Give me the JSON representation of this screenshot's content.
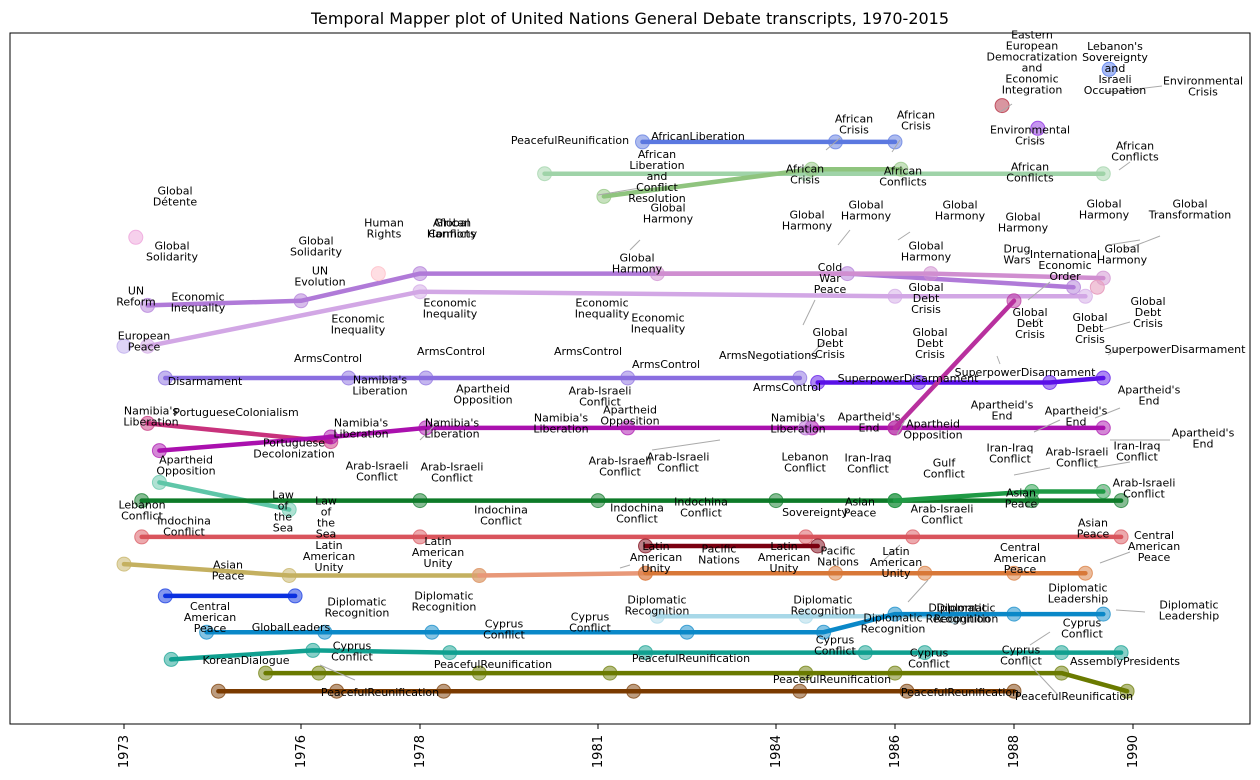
{
  "chart_data": {
    "type": "line",
    "title": "Temporal Mapper plot of United Nations General Debate transcripts, 1970-2015",
    "xlabel": "",
    "ylabel": "",
    "x_ticks": [
      "1973",
      "1976",
      "1978",
      "1981",
      "1984",
      "1986",
      "1988",
      "1990"
    ],
    "grid": false,
    "legend": "none",
    "series": [
      {
        "color": "#5b78e0",
        "points": [
          [
            "1981.75",
            16.5
          ],
          [
            "1985.0",
            16.5
          ],
          [
            "1986.0",
            16.5
          ]
        ]
      },
      {
        "color": "#9fd3a8",
        "points": [
          [
            "1980.1",
            15.8
          ],
          [
            "1984.5",
            15.8
          ],
          [
            "1989.5",
            15.8
          ]
        ]
      },
      {
        "color": "#8fc47e",
        "points": [
          [
            "1981.1",
            15.3
          ],
          [
            "1984.6",
            15.9
          ],
          [
            "1986.1",
            15.9
          ]
        ]
      },
      {
        "color": "#d2a7e5",
        "points": [
          [
            "1973.4",
            12.0
          ],
          [
            "1978.0",
            13.2
          ],
          [
            "1986.0",
            13.1
          ],
          [
            "1989.2",
            13.1
          ]
        ]
      },
      {
        "color": "#b07ad8",
        "points": [
          [
            "1973.4",
            12.9
          ],
          [
            "1976.0",
            13.0
          ],
          [
            "1978.0",
            13.6
          ],
          [
            "1985.2",
            13.6
          ],
          [
            "1989.0",
            13.3
          ]
        ]
      },
      {
        "color": "#d08ed0",
        "points": [
          [
            "1982.0",
            13.6
          ],
          [
            "1986.6",
            13.6
          ],
          [
            "1989.5",
            13.5
          ]
        ]
      },
      {
        "color": "#8a6ee0",
        "points": [
          [
            "1973.7",
            11.3
          ],
          [
            "1976.8",
            11.3
          ],
          [
            "1978.1",
            11.3
          ],
          [
            "1981.5",
            11.3
          ],
          [
            "1984.4",
            11.3
          ]
        ]
      },
      {
        "color": "#5a10e8",
        "points": [
          [
            "1984.7",
            11.2
          ],
          [
            "1986.4",
            11.2
          ],
          [
            "1988.6",
            11.2
          ],
          [
            "1989.5",
            11.3
          ]
        ]
      },
      {
        "color": "#c8327c",
        "points": [
          [
            "1973.4",
            10.3
          ],
          [
            "1976.5",
            9.9
          ]
        ]
      },
      {
        "color": "#aa10ae",
        "points": [
          [
            "1973.6",
            9.7
          ],
          [
            "1976.5",
            10.0
          ],
          [
            "1978.1",
            10.2
          ],
          [
            "1981.5",
            10.2
          ],
          [
            "1984.6",
            10.2
          ],
          [
            "1986.0",
            10.2
          ],
          [
            "1989.5",
            10.2
          ]
        ]
      },
      {
        "color": "#b8309e",
        "points": [
          [
            "1986.0",
            10.2
          ],
          [
            "1988.0",
            13.0
          ]
        ]
      },
      {
        "color": "#5fc6a8",
        "points": [
          [
            "1973.6",
            9.0
          ],
          [
            "1975.8",
            8.4
          ]
        ]
      },
      {
        "color": "#0d7a28",
        "points": [
          [
            "1973.3",
            8.6
          ],
          [
            "1978.0",
            8.6
          ],
          [
            "1981.0",
            8.6
          ],
          [
            "1984.0",
            8.6
          ],
          [
            "1986.0",
            8.6
          ],
          [
            "1988.3",
            8.6
          ],
          [
            "1989.8",
            8.6
          ]
        ]
      },
      {
        "color": "#1f9a45",
        "points": [
          [
            "1986.0",
            8.6
          ],
          [
            "1988.3",
            8.8
          ],
          [
            "1989.5",
            8.8
          ]
        ]
      },
      {
        "color": "#d9545c",
        "points": [
          [
            "1973.3",
            7.8
          ],
          [
            "1978.0",
            7.8
          ],
          [
            "1984.5",
            7.8
          ],
          [
            "1986.3",
            7.8
          ],
          [
            "1989.8",
            7.8
          ]
        ]
      },
      {
        "color": "#7a0010",
        "points": [
          [
            "1981.8",
            7.6
          ],
          [
            "1984.7",
            7.6
          ]
        ]
      },
      {
        "color": "#c4b060",
        "points": [
          [
            "1973.0",
            7.2
          ],
          [
            "1975.8",
            6.95
          ],
          [
            "1979.0",
            6.95
          ]
        ]
      },
      {
        "color": "#e89878",
        "points": [
          [
            "1979.0",
            6.95
          ],
          [
            "1981.8",
            7.0
          ]
        ]
      },
      {
        "color": "#d87838",
        "points": [
          [
            "1981.8",
            7.0
          ],
          [
            "1985.0",
            7.0
          ],
          [
            "1986.5",
            7.0
          ],
          [
            "1988.0",
            7.0
          ],
          [
            "1989.2",
            7.0
          ]
        ]
      },
      {
        "color": "#0a30e0",
        "points": [
          [
            "1973.7",
            6.5
          ],
          [
            "1975.9",
            6.5
          ]
        ]
      },
      {
        "color": "#a8d8e8",
        "points": [
          [
            "1982.0",
            6.05
          ],
          [
            "1984.5",
            6.05
          ],
          [
            "1987.0",
            6.05
          ]
        ]
      },
      {
        "color": "#0a88c8",
        "points": [
          [
            "1974.4",
            5.7
          ],
          [
            "1976.4",
            5.7
          ],
          [
            "1978.2",
            5.7
          ],
          [
            "1982.5",
            5.7
          ],
          [
            "1984.8",
            5.7
          ],
          [
            "1986.0",
            6.1
          ],
          [
            "1988.0",
            6.1
          ],
          [
            "1989.5",
            6.1
          ]
        ]
      },
      {
        "color": "#10a090",
        "points": [
          [
            "1973.8",
            5.1
          ],
          [
            "1976.2",
            5.3
          ],
          [
            "1978.5",
            5.25
          ],
          [
            "1981.8",
            5.25
          ],
          [
            "1985.5",
            5.25
          ],
          [
            "1986.5",
            5.25
          ],
          [
            "1988.8",
            5.25
          ],
          [
            "1989.8",
            5.25
          ]
        ]
      },
      {
        "color": "#6a7a00",
        "points": [
          [
            "1975.4",
            4.8
          ],
          [
            "1976.3",
            4.8
          ],
          [
            "1979.0",
            4.8
          ],
          [
            "1981.2",
            4.8
          ],
          [
            "1984.5",
            4.8
          ],
          [
            "1986.0",
            4.8
          ],
          [
            "1988.8",
            4.8
          ],
          [
            "1989.9",
            4.4
          ]
        ]
      },
      {
        "color": "#7a3a00",
        "points": [
          [
            "1974.6",
            4.4
          ],
          [
            "1976.6",
            4.4
          ],
          [
            "1978.4",
            4.4
          ],
          [
            "1981.6",
            4.4
          ],
          [
            "1984.4",
            4.4
          ],
          [
            "1986.2",
            4.4
          ],
          [
            "1988.0",
            4.4
          ]
        ]
      }
    ],
    "points": [
      {
        "x": "1973.2",
        "y": 14.4,
        "color": "#f0b0e0"
      },
      {
        "x": "1973.0",
        "y": 12.0,
        "color": "#c8b8f0"
      },
      {
        "x": "1977.3",
        "y": 13.6,
        "color": "#ffc8d0"
      },
      {
        "x": "1987.8",
        "y": 17.3,
        "color": "#c05060"
      },
      {
        "x": "1988.4",
        "y": 16.8,
        "color": "#a050e8"
      },
      {
        "x": "1989.6",
        "y": 18.1,
        "color": "#7090f0"
      },
      {
        "x": "1989.4",
        "y": 13.3,
        "color": "#e8a0c0"
      },
      {
        "x": "1984.5",
        "y": 10.2,
        "color": "#c080d8"
      }
    ],
    "annotations": [
      {
        "text": "Global Détente"
      },
      {
        "text": "Global Solidarity"
      },
      {
        "text": "UN Reform"
      },
      {
        "text": "Human Rights"
      },
      {
        "text": "Global Harmony"
      },
      {
        "text": "Global Solidarity"
      },
      {
        "text": "UN Evolution"
      },
      {
        "text": "Economic Inequality"
      },
      {
        "text": "Economic Inequality"
      },
      {
        "text": "Economic Inequality"
      },
      {
        "text": "Economic Inequality"
      },
      {
        "text": "Economic Inequality"
      },
      {
        "text": "European Peace"
      },
      {
        "text": "Disarmament"
      },
      {
        "text": "ArmsControl"
      },
      {
        "text": "ArmsControl"
      },
      {
        "text": "ArmsControl"
      },
      {
        "text": "ArmsControl"
      },
      {
        "text": "ArmsControl"
      },
      {
        "text": "ArmsNegotiations"
      },
      {
        "text": "Namibia's Liberation"
      },
      {
        "text": "PortugueseColonialism"
      },
      {
        "text": "Portuguese Decolonization"
      },
      {
        "text": "Namibia's Liberation"
      },
      {
        "text": "Namibia's Liberation"
      },
      {
        "text": "Namibia's Liberation"
      },
      {
        "text": "Apartheid Opposition"
      },
      {
        "text": "Namibia's Liberation"
      },
      {
        "text": "Apartheid Opposition"
      },
      {
        "text": "Namibia's Liberation"
      },
      {
        "text": "Apartheid Opposition"
      },
      {
        "text": "Arab-Israeli Conflict"
      },
      {
        "text": "Arab-Israeli Conflict"
      },
      {
        "text": "Arab-Israeli Conflict"
      },
      {
        "text": "Arab-Israeli Conflict"
      },
      {
        "text": "Lebanon Conflict"
      },
      {
        "text": "Lebanon Conflict"
      },
      {
        "text": "Indochina Conflict"
      },
      {
        "text": "Law of the Sea"
      },
      {
        "text": "Law of the Sea"
      },
      {
        "text": "Indochina Conflict"
      },
      {
        "text": "Indochina Conflict"
      },
      {
        "text": "Indochina Conflict"
      },
      {
        "text": "Sovereignty"
      },
      {
        "text": "Asian Peace"
      },
      {
        "text": "Arab-Israeli Conflict"
      },
      {
        "text": "Asian Peace"
      },
      {
        "text": "Asian Peace"
      },
      {
        "text": "Asian Peace"
      },
      {
        "text": "Latin American Unity"
      },
      {
        "text": "Latin American Unity"
      },
      {
        "text": "Latin American Unity"
      },
      {
        "text": "Pacific Nations"
      },
      {
        "text": "Latin American Unity"
      },
      {
        "text": "Pacific Nations"
      },
      {
        "text": "Latin American Unity"
      },
      {
        "text": "Central American Peace"
      },
      {
        "text": "Central American Peace"
      },
      {
        "text": "Central American Peace"
      },
      {
        "text": "Diplomatic Recognition"
      },
      {
        "text": "Diplomatic Recognition"
      },
      {
        "text": "Diplomatic Recognition"
      },
      {
        "text": "Diplomatic Recognition"
      },
      {
        "text": "Diplomatic Recognition"
      },
      {
        "text": "Diplomatic Recognition"
      },
      {
        "text": "Diplomatic Recognition"
      },
      {
        "text": "Diplomatic Leadership"
      },
      {
        "text": "Diplomatic Leadership"
      },
      {
        "text": "GlobalLeaders"
      },
      {
        "text": "Cyprus Conflict"
      },
      {
        "text": "Cyprus Conflict"
      },
      {
        "text": "Cyprus Conflict"
      },
      {
        "text": "Cyprus Conflict"
      },
      {
        "text": "Cyprus Conflict"
      },
      {
        "text": "Cyprus Conflict"
      },
      {
        "text": "Cyprus Conflict"
      },
      {
        "text": "AssemblyPresidents"
      },
      {
        "text": "KoreanDialogue"
      },
      {
        "text": "PeacefulReunification"
      },
      {
        "text": "PeacefulReunification"
      },
      {
        "text": "PeacefulReunification"
      },
      {
        "text": "PeacefulReunification"
      },
      {
        "text": "PeacefulReunification"
      },
      {
        "text": "PeacefulReunification"
      },
      {
        "text": "PeacefulReunification"
      },
      {
        "text": "African Liberation and Conflict Resolution"
      },
      {
        "text": "AfricanLiberation"
      },
      {
        "text": "African Crisis"
      },
      {
        "text": "African Crisis"
      },
      {
        "text": "African Crisis"
      },
      {
        "text": "African Conflicts"
      },
      {
        "text": "African Conflicts"
      },
      {
        "text": "African Conflicts"
      },
      {
        "text": "African Conflicts"
      },
      {
        "text": "Global Harmony"
      },
      {
        "text": "Global Harmony"
      },
      {
        "text": "Global Harmony"
      },
      {
        "text": "Global Harmony"
      },
      {
        "text": "Global Harmony"
      },
      {
        "text": "Global Harmony"
      },
      {
        "text": "Global Harmony"
      },
      {
        "text": "Global Harmony"
      },
      {
        "text": "Global Harmony"
      },
      {
        "text": "Global Transformation"
      },
      {
        "text": "Eastern European Democratization and Economic Integration"
      },
      {
        "text": "Lebanon's Sovereignty and Israeli Occupation"
      },
      {
        "text": "Environmental Crisis"
      },
      {
        "text": "Environmental Crisis"
      },
      {
        "text": "Drug Wars"
      },
      {
        "text": "Cold War Peace"
      },
      {
        "text": "International Economic Order"
      },
      {
        "text": "Global Debt Crisis"
      },
      {
        "text": "Global Debt Crisis"
      },
      {
        "text": "Global Debt Crisis"
      },
      {
        "text": "Global Debt Crisis"
      },
      {
        "text": "Global Debt Crisis"
      },
      {
        "text": "Global Debt Crisis"
      },
      {
        "text": "SuperpowerDisarmament"
      },
      {
        "text": "SuperpowerDisarmament"
      },
      {
        "text": "SuperpowerDisarmament"
      },
      {
        "text": "Apartheid's End"
      },
      {
        "text": "Apartheid's End"
      },
      {
        "text": "Apartheid's End"
      },
      {
        "text": "Apartheid's End"
      },
      {
        "text": "Apartheid's End"
      },
      {
        "text": "Apartheid Opposition"
      },
      {
        "text": "Iran-Iraq Conflict"
      },
      {
        "text": "Iran-Iraq Conflict"
      },
      {
        "text": "Iran-Iraq Conflict"
      },
      {
        "text": "Gulf Conflict"
      },
      {
        "text": "Arab-Israeli Conflict"
      },
      {
        "text": "Arab-Israeli Conflict"
      },
      {
        "text": "Arab-Israeli Conflict"
      }
    ]
  }
}
